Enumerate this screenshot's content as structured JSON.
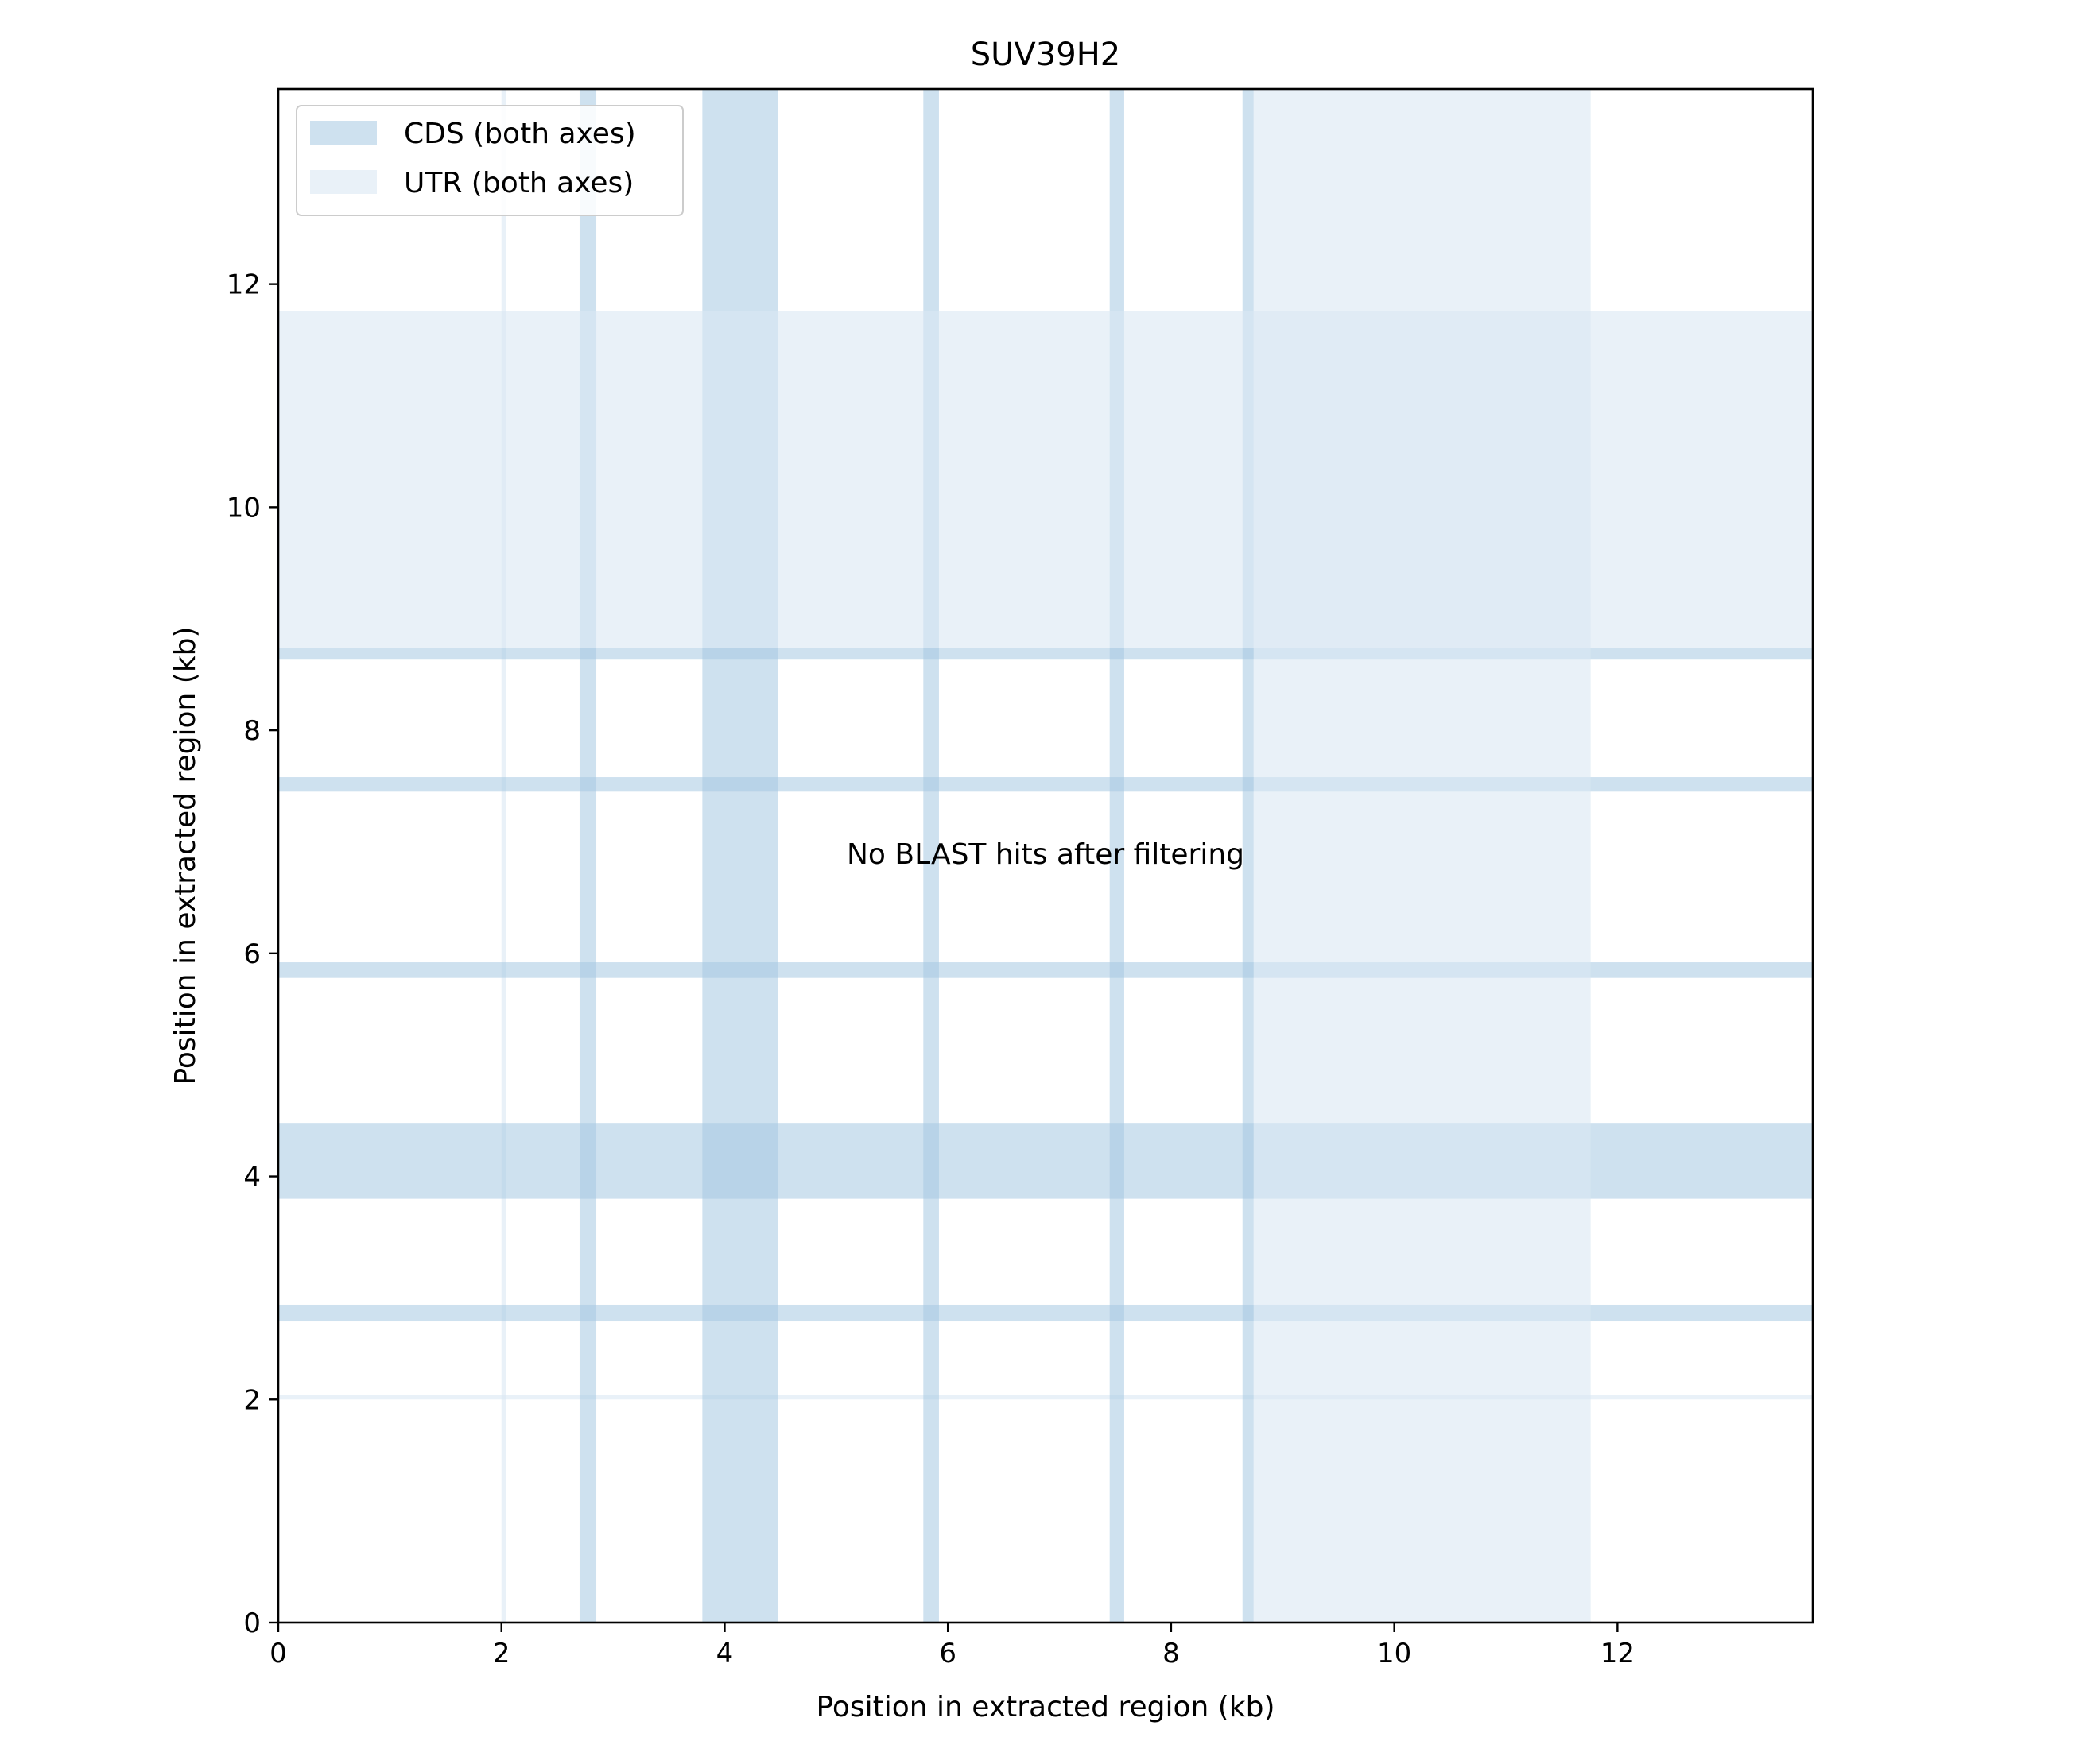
{
  "chart_data": {
    "type": "dotplot",
    "title": "SUV39H2",
    "xlabel": "Position in extracted region (kb)",
    "ylabel": "Position in extracted region (kb)",
    "xlim": [
      0,
      13.75
    ],
    "ylim": [
      0,
      13.75
    ],
    "xticks": [
      0,
      2,
      4,
      6,
      8,
      10,
      12
    ],
    "yticks": [
      0,
      2,
      4,
      6,
      8,
      10,
      12
    ],
    "annotation": "No BLAST hits after filtering",
    "colors": {
      "cds": "#a6c9e2",
      "utr": "#dbe8f4"
    },
    "legend": {
      "placement": "upper-left",
      "entries": [
        {
          "label": "CDS (both axes)",
          "kind": "cds"
        },
        {
          "label": "UTR (both axes)",
          "kind": "utr"
        }
      ]
    },
    "features": [
      {
        "kind": "utr",
        "start": 2.0,
        "end": 2.04
      },
      {
        "kind": "cds",
        "start": 2.7,
        "end": 2.85
      },
      {
        "kind": "cds",
        "start": 3.8,
        "end": 4.48
      },
      {
        "kind": "cds",
        "start": 5.78,
        "end": 5.92
      },
      {
        "kind": "cds",
        "start": 7.45,
        "end": 7.58
      },
      {
        "kind": "cds",
        "start": 8.64,
        "end": 8.74
      },
      {
        "kind": "utr",
        "start": 8.74,
        "end": 11.76
      }
    ]
  }
}
